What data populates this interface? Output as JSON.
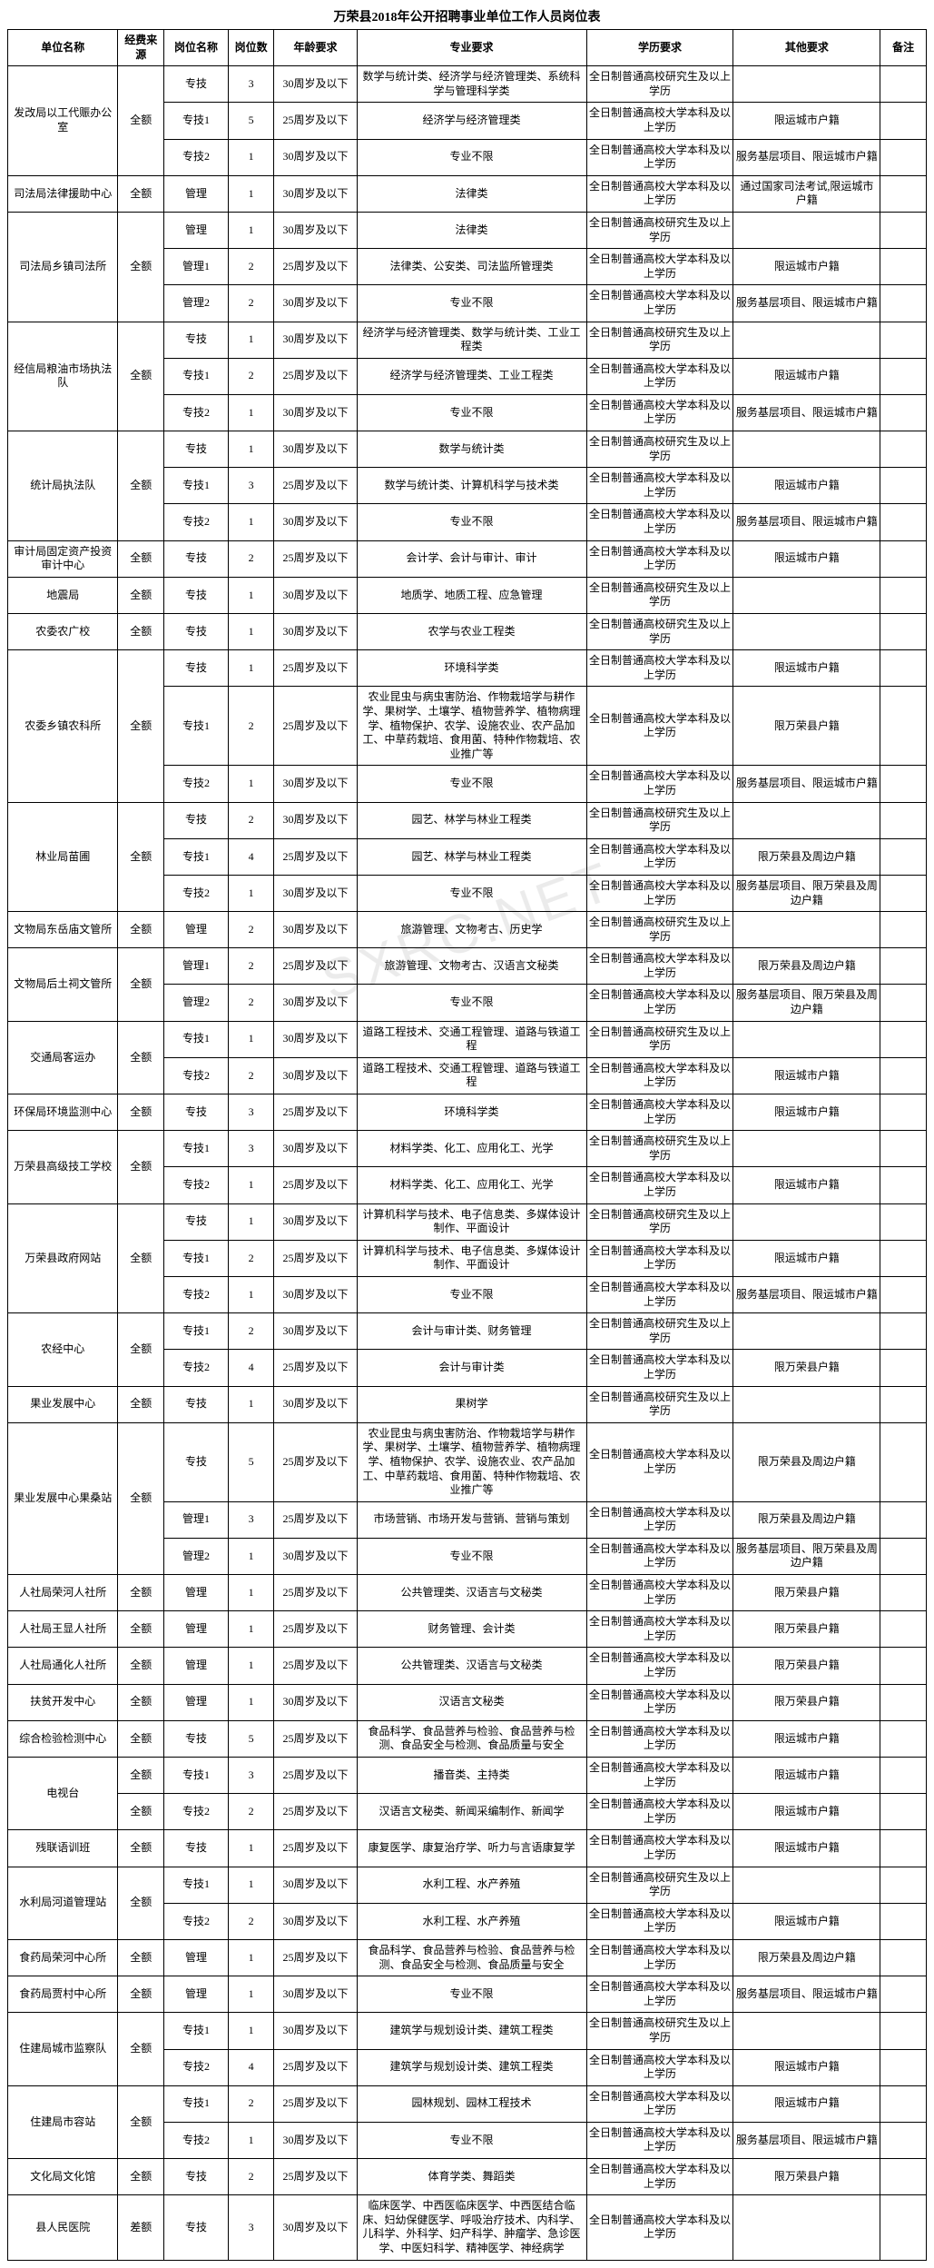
{
  "title": "万荣县2018年公开招聘事业单位工作人员岗位表",
  "watermark": "SXRC.NET",
  "headers": {
    "unit": "单位名称",
    "fund": "经费来源",
    "post": "岗位名称",
    "num": "岗位数",
    "age": "年龄要求",
    "major": "专业要求",
    "edu": "学历要求",
    "other": "其他要求",
    "note": "备注"
  },
  "rows": [
    {
      "unit": "发改局以工代赈办公室",
      "unitSpan": 3,
      "fund": "全额",
      "fundSpan": 3,
      "post": "专技",
      "num": "3",
      "age": "30周岁及以下",
      "major": "数学与统计类、经济学与经济管理类、系统科学与管理科学类",
      "edu": "全日制普通高校研究生及以上学历",
      "other": "",
      "note": ""
    },
    {
      "post": "专技1",
      "num": "5",
      "age": "25周岁及以下",
      "major": "经济学与经济管理类",
      "edu": "全日制普通高校大学本科及以上学历",
      "other": "限运城市户籍",
      "note": ""
    },
    {
      "post": "专技2",
      "num": "1",
      "age": "30周岁及以下",
      "major": "专业不限",
      "edu": "全日制普通高校大学本科及以上学历",
      "other": "服务基层项目、限运城市户籍",
      "note": ""
    },
    {
      "unit": "司法局法律援助中心",
      "unitSpan": 1,
      "fund": "全额",
      "fundSpan": 1,
      "post": "管理",
      "num": "1",
      "age": "30周岁及以下",
      "major": "法律类",
      "edu": "全日制普通高校大学本科及以上学历",
      "other": "通过国家司法考试,限运城市户籍",
      "note": ""
    },
    {
      "unit": "司法局乡镇司法所",
      "unitSpan": 3,
      "fund": "全额",
      "fundSpan": 3,
      "post": "管理",
      "num": "1",
      "age": "30周岁及以下",
      "major": "法律类",
      "edu": "全日制普通高校研究生及以上学历",
      "other": "",
      "note": ""
    },
    {
      "post": "管理1",
      "num": "2",
      "age": "25周岁及以下",
      "major": "法律类、公安类、司法监所管理类",
      "edu": "全日制普通高校大学本科及以上学历",
      "other": "限运城市户籍",
      "note": ""
    },
    {
      "post": "管理2",
      "num": "2",
      "age": "30周岁及以下",
      "major": "专业不限",
      "edu": "全日制普通高校大学本科及以上学历",
      "other": "服务基层项目、限运城市户籍",
      "note": ""
    },
    {
      "unit": "经信局粮油市场执法队",
      "unitSpan": 3,
      "fund": "全额",
      "fundSpan": 3,
      "post": "专技",
      "num": "1",
      "age": "30周岁及以下",
      "major": "经济学与经济管理类、数学与统计类、工业工程类",
      "edu": "全日制普通高校研究生及以上学历",
      "other": "",
      "note": ""
    },
    {
      "post": "专技1",
      "num": "2",
      "age": "25周岁及以下",
      "major": "经济学与经济管理类、工业工程类",
      "edu": "全日制普通高校大学本科及以上学历",
      "other": "限运城市户籍",
      "note": ""
    },
    {
      "post": "专技2",
      "num": "1",
      "age": "30周岁及以下",
      "major": "专业不限",
      "edu": "全日制普通高校大学本科及以上学历",
      "other": "服务基层项目、限运城市户籍",
      "note": ""
    },
    {
      "unit": "统计局执法队",
      "unitSpan": 3,
      "fund": "全额",
      "fundSpan": 3,
      "post": "专技",
      "num": "1",
      "age": "30周岁及以下",
      "major": "数学与统计类",
      "edu": "全日制普通高校研究生及以上学历",
      "other": "",
      "note": ""
    },
    {
      "post": "专技1",
      "num": "3",
      "age": "25周岁及以下",
      "major": "数学与统计类、计算机科学与技术类",
      "edu": "全日制普通高校大学本科及以上学历",
      "other": "限运城市户籍",
      "note": ""
    },
    {
      "post": "专技2",
      "num": "1",
      "age": "30周岁及以下",
      "major": "专业不限",
      "edu": "全日制普通高校大学本科及以上学历",
      "other": "服务基层项目、限运城市户籍",
      "note": ""
    },
    {
      "unit": "审计局固定资产投资审计中心",
      "unitSpan": 1,
      "fund": "全额",
      "fundSpan": 1,
      "post": "专技",
      "num": "2",
      "age": "25周岁及以下",
      "major": "会计学、会计与审计、审计",
      "edu": "全日制普通高校大学本科及以上学历",
      "other": "限运城市户籍",
      "note": ""
    },
    {
      "unit": "地震局",
      "unitSpan": 1,
      "fund": "全额",
      "fundSpan": 1,
      "post": "专技",
      "num": "1",
      "age": "30周岁及以下",
      "major": "地质学、地质工程、应急管理",
      "edu": "全日制普通高校研究生及以上学历",
      "other": "",
      "note": ""
    },
    {
      "unit": "农委农广校",
      "unitSpan": 1,
      "fund": "全额",
      "fundSpan": 1,
      "post": "专技",
      "num": "1",
      "age": "30周岁及以下",
      "major": "农学与农业工程类",
      "edu": "全日制普通高校研究生及以上学历",
      "other": "",
      "note": ""
    },
    {
      "unit": "农委乡镇农科所",
      "unitSpan": 3,
      "fund": "全额",
      "fundSpan": 3,
      "post": "专技",
      "num": "1",
      "age": "25周岁及以下",
      "major": "环境科学类",
      "edu": "全日制普通高校大学本科及以上学历",
      "other": "限运城市户籍",
      "note": ""
    },
    {
      "post": "专技1",
      "num": "2",
      "age": "25周岁及以下",
      "major": "农业昆虫与病虫害防治、作物栽培学与耕作学、果树学、土壤学、植物营养学、植物病理学、植物保护、农学、设施农业、农产品加工、中草药栽培、食用菌、特种作物栽培、农业推广等",
      "edu": "全日制普通高校大学本科及以上学历",
      "other": "限万荣县户籍",
      "note": ""
    },
    {
      "post": "专技2",
      "num": "1",
      "age": "30周岁及以下",
      "major": "专业不限",
      "edu": "全日制普通高校大学本科及以上学历",
      "other": "服务基层项目、限运城市户籍",
      "note": ""
    },
    {
      "unit": "林业局苗圃",
      "unitSpan": 3,
      "fund": "全额",
      "fundSpan": 3,
      "post": "专技",
      "num": "2",
      "age": "30周岁及以下",
      "major": "园艺、林学与林业工程类",
      "edu": "全日制普通高校研究生及以上学历",
      "other": "",
      "note": ""
    },
    {
      "post": "专技1",
      "num": "4",
      "age": "25周岁及以下",
      "major": "园艺、林学与林业工程类",
      "edu": "全日制普通高校大学本科及以上学历",
      "other": "限万荣县及周边户籍",
      "note": ""
    },
    {
      "post": "专技2",
      "num": "1",
      "age": "30周岁及以下",
      "major": "专业不限",
      "edu": "全日制普通高校大学本科及以上学历",
      "other": "服务基层项目、限万荣县及周边户籍",
      "note": ""
    },
    {
      "unit": "文物局东岳庙文管所",
      "unitSpan": 1,
      "fund": "全额",
      "fundSpan": 1,
      "post": "管理",
      "num": "2",
      "age": "30周岁及以下",
      "major": "旅游管理、文物考古、历史学",
      "edu": "全日制普通高校研究生及以上学历",
      "other": "",
      "note": ""
    },
    {
      "unit": "文物局后土祠文管所",
      "unitSpan": 2,
      "fund": "全额",
      "fundSpan": 2,
      "post": "管理1",
      "num": "2",
      "age": "25周岁及以下",
      "major": "旅游管理、文物考古、汉语言文秘类",
      "edu": "全日制普通高校大学本科及以上学历",
      "other": "限万荣县及周边户籍",
      "note": ""
    },
    {
      "post": "管理2",
      "num": "2",
      "age": "30周岁及以下",
      "major": "专业不限",
      "edu": "全日制普通高校大学本科及以上学历",
      "other": "服务基层项目、限万荣县及周边户籍",
      "note": ""
    },
    {
      "unit": "交通局客运办",
      "unitSpan": 2,
      "fund": "全额",
      "fundSpan": 2,
      "post": "专技1",
      "num": "1",
      "age": "30周岁及以下",
      "major": "道路工程技术、交通工程管理、道路与铁道工程",
      "edu": "全日制普通高校研究生及以上学历",
      "other": "",
      "note": ""
    },
    {
      "post": "专技2",
      "num": "2",
      "age": "30周岁及以下",
      "major": "道路工程技术、交通工程管理、道路与铁道工程",
      "edu": "全日制普通高校大学本科及以上学历",
      "other": "限运城市户籍",
      "note": ""
    },
    {
      "unit": "环保局环境监测中心",
      "unitSpan": 1,
      "fund": "全额",
      "fundSpan": 1,
      "post": "专技",
      "num": "3",
      "age": "25周岁及以下",
      "major": "环境科学类",
      "edu": "全日制普通高校大学本科及以上学历",
      "other": "限运城市户籍",
      "note": ""
    },
    {
      "unit": "万荣县高级技工学校",
      "unitSpan": 2,
      "fund": "全额",
      "fundSpan": 2,
      "post": "专技1",
      "num": "3",
      "age": "30周岁及以下",
      "major": "材料学类、化工、应用化工、光学",
      "edu": "全日制普通高校研究生及以上学历",
      "other": "",
      "note": ""
    },
    {
      "post": "专技2",
      "num": "1",
      "age": "25周岁及以下",
      "major": "材料学类、化工、应用化工、光学",
      "edu": "全日制普通高校大学本科及以上学历",
      "other": "限运城市户籍",
      "note": ""
    },
    {
      "unit": "万荣县政府网站",
      "unitSpan": 3,
      "fund": "全额",
      "fundSpan": 3,
      "post": "专技",
      "num": "1",
      "age": "30周岁及以下",
      "major": "计算机科学与技术、电子信息类、多媒体设计制作、平面设计",
      "edu": "全日制普通高校研究生及以上学历",
      "other": "",
      "note": ""
    },
    {
      "post": "专技1",
      "num": "2",
      "age": "25周岁及以下",
      "major": "计算机科学与技术、电子信息类、多媒体设计制作、平面设计",
      "edu": "全日制普通高校大学本科及以上学历",
      "other": "限运城市户籍",
      "note": ""
    },
    {
      "post": "专技2",
      "num": "1",
      "age": "30周岁及以下",
      "major": "专业不限",
      "edu": "全日制普通高校大学本科及以上学历",
      "other": "服务基层项目、限运城市户籍",
      "note": ""
    },
    {
      "unit": "农经中心",
      "unitSpan": 2,
      "fund": "全额",
      "fundSpan": 2,
      "post": "专技1",
      "num": "2",
      "age": "30周岁及以下",
      "major": "会计与审计类、财务管理",
      "edu": "全日制普通高校研究生及以上学历",
      "other": "",
      "note": ""
    },
    {
      "post": "专技2",
      "num": "4",
      "age": "25周岁及以下",
      "major": "会计与审计类",
      "edu": "全日制普通高校大学本科及以上学历",
      "other": "限万荣县户籍",
      "note": ""
    },
    {
      "unit": "果业发展中心",
      "unitSpan": 1,
      "fund": "全额",
      "fundSpan": 1,
      "post": "专技",
      "num": "1",
      "age": "30周岁及以下",
      "major": "果树学",
      "edu": "全日制普通高校研究生及以上学历",
      "other": "",
      "note": ""
    },
    {
      "unit": "果业发展中心果桑站",
      "unitSpan": 3,
      "fund": "全额",
      "fundSpan": 3,
      "post": "专技",
      "num": "5",
      "age": "25周岁及以下",
      "major": "农业昆虫与病虫害防治、作物栽培学与耕作学、果树学、土壤学、植物营养学、植物病理学、植物保护、农学、设施农业、农产品加工、中草药栽培、食用菌、特种作物栽培、农业推广等",
      "edu": "全日制普通高校大学本科及以上学历",
      "other": "限万荣县及周边户籍",
      "note": ""
    },
    {
      "post": "管理1",
      "num": "3",
      "age": "25周岁及以下",
      "major": "市场营销、市场开发与营销、营销与策划",
      "edu": "全日制普通高校大学本科及以上学历",
      "other": "限万荣县及周边户籍",
      "note": ""
    },
    {
      "post": "管理2",
      "num": "1",
      "age": "30周岁及以下",
      "major": "专业不限",
      "edu": "全日制普通高校大学本科及以上学历",
      "other": "服务基层项目、限万荣县及周边户籍",
      "note": ""
    },
    {
      "unit": "人社局荣河人社所",
      "unitSpan": 1,
      "fund": "全额",
      "fundSpan": 1,
      "post": "管理",
      "num": "1",
      "age": "25周岁及以下",
      "major": "公共管理类、汉语言与文秘类",
      "edu": "全日制普通高校大学本科及以上学历",
      "other": "限万荣县户籍",
      "note": ""
    },
    {
      "unit": "人社局王显人社所",
      "unitSpan": 1,
      "fund": "全额",
      "fundSpan": 1,
      "post": "管理",
      "num": "1",
      "age": "25周岁及以下",
      "major": "财务管理、会计类",
      "edu": "全日制普通高校大学本科及以上学历",
      "other": "限万荣县户籍",
      "note": ""
    },
    {
      "unit": "人社局通化人社所",
      "unitSpan": 1,
      "fund": "全额",
      "fundSpan": 1,
      "post": "管理",
      "num": "1",
      "age": "25周岁及以下",
      "major": "公共管理类、汉语言与文秘类",
      "edu": "全日制普通高校大学本科及以上学历",
      "other": "限万荣县户籍",
      "note": ""
    },
    {
      "unit": "扶贫开发中心",
      "unitSpan": 1,
      "fund": "全额",
      "fundSpan": 1,
      "post": "管理",
      "num": "1",
      "age": "30周岁及以下",
      "major": "汉语言文秘类",
      "edu": "全日制普通高校大学本科及以上学历",
      "other": "限万荣县户籍",
      "note": ""
    },
    {
      "unit": "综合检验检测中心",
      "unitSpan": 1,
      "fund": "全额",
      "fundSpan": 1,
      "post": "专技",
      "num": "5",
      "age": "25周岁及以下",
      "major": "食品科学、食品营养与检验、食品营养与检测、食品安全与检测、食品质量与安全",
      "edu": "全日制普通高校大学本科及以上学历",
      "other": "限运城市户籍",
      "note": ""
    },
    {
      "unit": "电视台",
      "unitSpan": 2,
      "fund": "全额",
      "fundSpan": 1,
      "post": "专技1",
      "num": "3",
      "age": "25周岁及以下",
      "major": "播音类、主持类",
      "edu": "全日制普通高校大学本科及以上学历",
      "other": "限运城市户籍",
      "note": ""
    },
    {
      "fund": "全额",
      "fundSpan": 1,
      "post": "专技2",
      "num": "2",
      "age": "25周岁及以下",
      "major": "汉语言文秘类、新闻采编制作、新闻学",
      "edu": "全日制普通高校大学本科及以上学历",
      "other": "限运城市户籍",
      "note": ""
    },
    {
      "unit": "残联语训班",
      "unitSpan": 1,
      "fund": "全额",
      "fundSpan": 1,
      "post": "专技",
      "num": "1",
      "age": "25周岁及以下",
      "major": "康复医学、康复治疗学、听力与言语康复学",
      "edu": "全日制普通高校大学本科及以上学历",
      "other": "限运城市户籍",
      "note": ""
    },
    {
      "unit": "水利局河道管理站",
      "unitSpan": 2,
      "fund": "全额",
      "fundSpan": 2,
      "post": "专技1",
      "num": "1",
      "age": "30周岁及以下",
      "major": "水利工程、水产养殖",
      "edu": "全日制普通高校研究生及以上学历",
      "other": "",
      "note": ""
    },
    {
      "post": "专技2",
      "num": "2",
      "age": "30周岁及以下",
      "major": "水利工程、水产养殖",
      "edu": "全日制普通高校大学本科及以上学历",
      "other": "限运城市户籍",
      "note": ""
    },
    {
      "unit": "食药局荣河中心所",
      "unitSpan": 1,
      "fund": "全额",
      "fundSpan": 1,
      "post": "管理",
      "num": "1",
      "age": "25周岁及以下",
      "major": "食品科学、食品营养与检验、食品营养与检测、食品安全与检测、食品质量与安全",
      "edu": "全日制普通高校大学本科及以上学历",
      "other": "限万荣县及周边户籍",
      "note": ""
    },
    {
      "unit": "食药局贾村中心所",
      "unitSpan": 1,
      "fund": "全额",
      "fundSpan": 1,
      "post": "管理",
      "num": "1",
      "age": "30周岁及以下",
      "major": "专业不限",
      "edu": "全日制普通高校大学本科及以上学历",
      "other": "服务基层项目、限运城市户籍",
      "note": ""
    },
    {
      "unit": "住建局城市监察队",
      "unitSpan": 2,
      "fund": "全额",
      "fundSpan": 2,
      "post": "专技1",
      "num": "1",
      "age": "30周岁及以下",
      "major": "建筑学与规划设计类、建筑工程类",
      "edu": "全日制普通高校研究生及以上学历",
      "other": "",
      "note": ""
    },
    {
      "post": "专技2",
      "num": "4",
      "age": "25周岁及以下",
      "major": "建筑学与规划设计类、建筑工程类",
      "edu": "全日制普通高校大学本科及以上学历",
      "other": "限运城市户籍",
      "note": ""
    },
    {
      "unit": "住建局市容站",
      "unitSpan": 2,
      "fund": "全额",
      "fundSpan": 2,
      "post": "专技1",
      "num": "2",
      "age": "25周岁及以下",
      "major": "园林规划、园林工程技术",
      "edu": "全日制普通高校大学本科及以上学历",
      "other": "限运城市户籍",
      "note": ""
    },
    {
      "post": "专技2",
      "num": "1",
      "age": "30周岁及以下",
      "major": "专业不限",
      "edu": "全日制普通高校大学本科及以上学历",
      "other": "服务基层项目、限运城市户籍",
      "note": ""
    },
    {
      "unit": "文化局文化馆",
      "unitSpan": 1,
      "fund": "全额",
      "fundSpan": 1,
      "post": "专技",
      "num": "2",
      "age": "25周岁及以下",
      "major": "体育学类、舞蹈类",
      "edu": "全日制普通高校大学本科及以上学历",
      "other": "限万荣县户籍",
      "note": ""
    },
    {
      "unit": "县人民医院",
      "unitSpan": 1,
      "fund": "差额",
      "fundSpan": 1,
      "post": "专技",
      "num": "3",
      "age": "30周岁及以下",
      "major": "临床医学、中西医临床医学、中西医结合临床、妇幼保健医学、呼吸治疗技术、内科学、儿科学、外科学、妇产科学、肿瘤学、急诊医学、中医妇科学、精神医学、神经病学",
      "edu": "全日制普通高校大学本科及以上学历",
      "other": "",
      "note": ""
    }
  ]
}
